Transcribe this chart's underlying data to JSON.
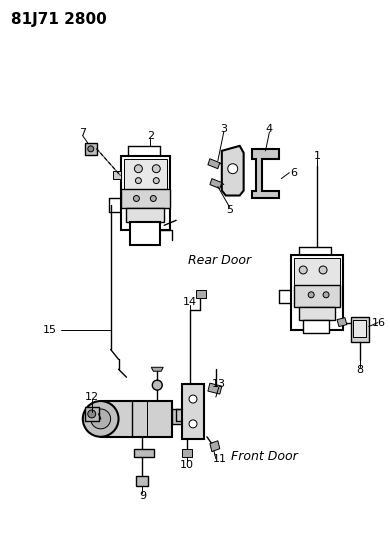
{
  "title": "81J71 2800",
  "background_color": "#ffffff",
  "text_color": "#000000",
  "rear_door_label": "Rear Door",
  "front_door_label": "Front Door",
  "figsize": [
    3.9,
    5.33
  ],
  "dpi": 100,
  "lw_heavy": 1.5,
  "lw_med": 1.0,
  "lw_light": 0.7,
  "gray_fill": "#d0d0d0",
  "dark_fill": "#888888"
}
